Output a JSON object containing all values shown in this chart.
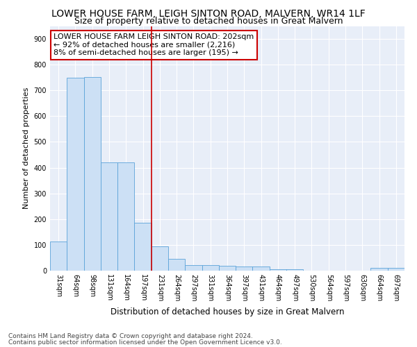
{
  "title": "LOWER HOUSE FARM, LEIGH SINTON ROAD, MALVERN, WR14 1LF",
  "subtitle": "Size of property relative to detached houses in Great Malvern",
  "xlabel": "Distribution of detached houses by size in Great Malvern",
  "ylabel": "Number of detached properties",
  "footer_line1": "Contains HM Land Registry data © Crown copyright and database right 2024.",
  "footer_line2": "Contains public sector information licensed under the Open Government Licence v3.0.",
  "categories": [
    "31sqm",
    "64sqm",
    "98sqm",
    "131sqm",
    "164sqm",
    "197sqm",
    "231sqm",
    "264sqm",
    "297sqm",
    "331sqm",
    "364sqm",
    "397sqm",
    "431sqm",
    "464sqm",
    "497sqm",
    "530sqm",
    "564sqm",
    "597sqm",
    "630sqm",
    "664sqm",
    "697sqm"
  ],
  "values": [
    113,
    748,
    752,
    420,
    420,
    185,
    95,
    45,
    22,
    22,
    18,
    15,
    15,
    5,
    5,
    0,
    0,
    0,
    0,
    10,
    10
  ],
  "bar_color": "#cce0f5",
  "bar_edge_color": "#5ba3d9",
  "vline_x_index": 5,
  "vline_color": "#cc0000",
  "annotation_text": "LOWER HOUSE FARM LEIGH SINTON ROAD: 202sqm\n← 92% of detached houses are smaller (2,216)\n8% of semi-detached houses are larger (195) →",
  "annotation_box_color": "#ffffff",
  "annotation_box_edge": "#cc0000",
  "ylim": [
    0,
    950
  ],
  "yticks": [
    0,
    100,
    200,
    300,
    400,
    500,
    600,
    700,
    800,
    900
  ],
  "bg_color": "#e8eef8",
  "title_fontsize": 10,
  "subtitle_fontsize": 9,
  "annotation_fontsize": 8,
  "footer_fontsize": 6.5,
  "ylabel_fontsize": 8,
  "xlabel_fontsize": 8.5,
  "tick_fontsize": 7
}
